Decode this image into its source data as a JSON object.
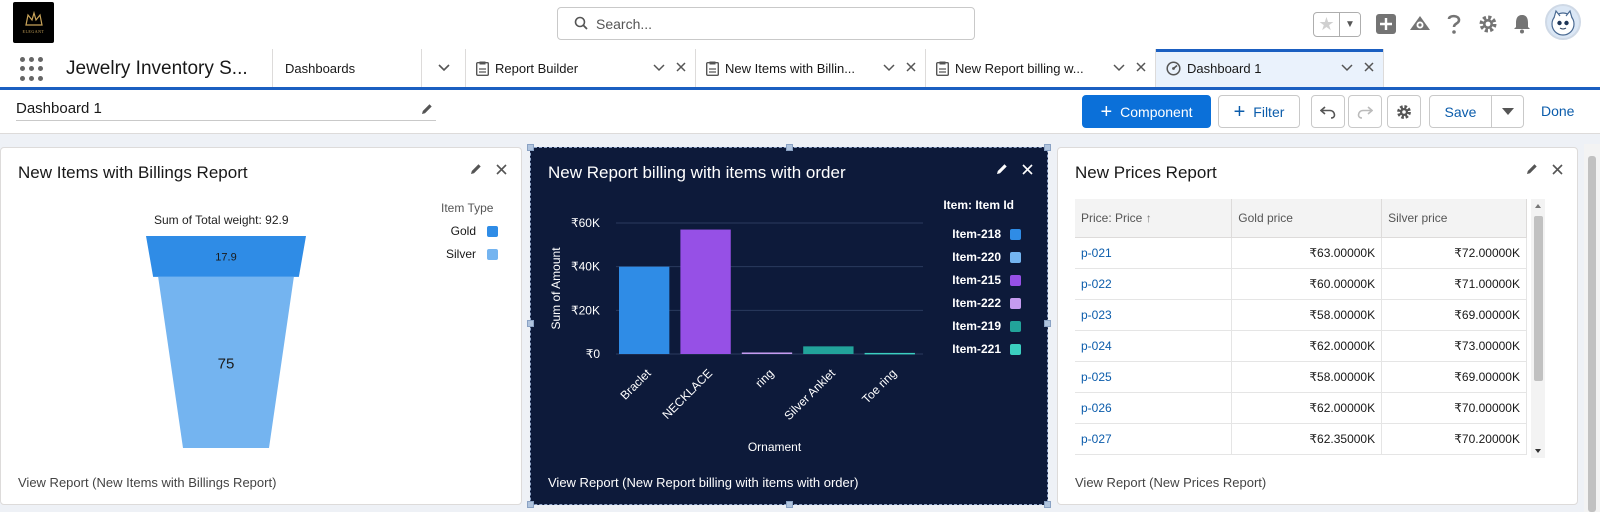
{
  "header": {
    "logo_text": "ELEGANT",
    "search_placeholder": "Search...",
    "icons": [
      "star-icon",
      "plus-icon",
      "trailhead-icon",
      "help-icon",
      "gear-icon",
      "bell-icon",
      "avatar"
    ]
  },
  "nav": {
    "app_name": "Jewelry Inventory S...",
    "tabs": [
      {
        "label": "Dashboards"
      },
      {
        "label": "Report Builder"
      },
      {
        "label": "New Items with Billin..."
      },
      {
        "label": "New Report billing w..."
      },
      {
        "label": "Dashboard 1"
      }
    ]
  },
  "toolbar": {
    "title": "Dashboard 1",
    "component_label": "Component",
    "filter_label": "Filter",
    "save_label": "Save",
    "done_label": "Done"
  },
  "cards": {
    "items": {
      "title": "New Items with Billings Report",
      "caption": "Sum of Total weight: 92.9",
      "legend_title": "Item Type",
      "footer": "View Report (New Items with Billings Report)"
    },
    "billing": {
      "title": "New Report billing with items with order",
      "footer": "View Report (New Report billing with items with order)"
    },
    "prices": {
      "title": "New Prices Report",
      "footer": "View Report (New Prices Report)",
      "columns": [
        "Price: Price",
        "Gold price",
        "Silver price"
      ],
      "rows": [
        [
          "p-021",
          "₹63.00000K",
          "₹72.00000K"
        ],
        [
          "p-022",
          "₹60.00000K",
          "₹71.00000K"
        ],
        [
          "p-023",
          "₹58.00000K",
          "₹69.00000K"
        ],
        [
          "p-024",
          "₹62.00000K",
          "₹73.00000K"
        ],
        [
          "p-025",
          "₹58.00000K",
          "₹69.00000K"
        ],
        [
          "p-026",
          "₹62.00000K",
          "₹70.00000K"
        ],
        [
          "p-027",
          "₹62.35000K",
          "₹70.20000K"
        ]
      ]
    }
  },
  "chart_data": [
    {
      "type": "funnel",
      "title": "New Items with Billings Report",
      "subtitle": "Sum of Total weight: 92.9",
      "legend_title": "Item Type",
      "legend_position": "top-right",
      "categories": [
        "Gold",
        "Silver"
      ],
      "values": [
        17.9,
        75
      ],
      "colors": [
        "#2f8ce6",
        "#74b4f0"
      ]
    },
    {
      "type": "bar",
      "title": "New Report billing with items with order",
      "xlabel": "Ornament",
      "ylabel": "Sum of Amount",
      "categories": [
        "Braclet",
        "NECKLACE",
        "ring",
        "Silver Anklet",
        "Toe ring"
      ],
      "yticks": [
        "₹0",
        "₹20K",
        "₹40K",
        "₹60K"
      ],
      "ylim": [
        0,
        60000
      ],
      "grid": true,
      "legend_title": "Item: Item Id",
      "legend_position": "right",
      "bars": [
        {
          "category": "Braclet",
          "series": "Item-218",
          "value": 40000
        },
        {
          "category": "NECKLACE",
          "series": "Item-215",
          "value": 57000
        },
        {
          "category": "ring",
          "series": "Item-222",
          "value": 700
        },
        {
          "category": "Silver Anklet",
          "series": "Item-219",
          "value": 3500
        },
        {
          "category": "Toe ring",
          "series": "Item-221",
          "value": 500
        }
      ],
      "series": [
        {
          "name": "Item-218",
          "color": "#2f8ce6"
        },
        {
          "name": "Item-220",
          "color": "#74b4f0"
        },
        {
          "name": "Item-215",
          "color": "#9650e6"
        },
        {
          "name": "Item-222",
          "color": "#c59bf0"
        },
        {
          "name": "Item-219",
          "color": "#22a39a"
        },
        {
          "name": "Item-221",
          "color": "#3bcfc0"
        }
      ]
    }
  ]
}
